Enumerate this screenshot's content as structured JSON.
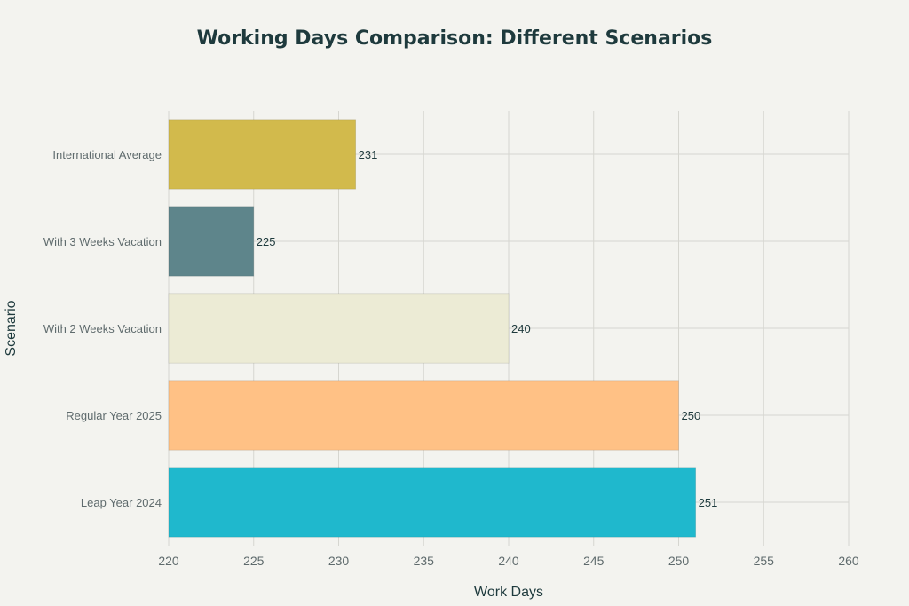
{
  "chart_data": {
    "type": "bar",
    "orientation": "horizontal",
    "title": "Working Days Comparison: Different Scenarios",
    "xlabel": "Work Days",
    "ylabel": "Scenario",
    "xlim": [
      220,
      260
    ],
    "xticks": [
      220,
      225,
      230,
      235,
      240,
      245,
      250,
      255,
      260
    ],
    "grid": true,
    "categories": [
      "International Average",
      "With 3 Weeks Vacation",
      "With 2 Weeks Vacation",
      "Regular Year 2025",
      "Leap Year 2024"
    ],
    "values": [
      231,
      225,
      240,
      250,
      251
    ],
    "colors": [
      "#d2ba4c",
      "#5e858b",
      "#ecebd5",
      "#ffc185",
      "#1fb8cd"
    ]
  }
}
